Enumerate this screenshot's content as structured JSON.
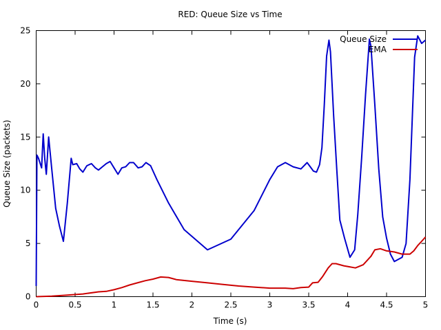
{
  "chart_data": {
    "type": "line",
    "title": "RED: Queue Size vs Time",
    "xlabel": "Time (s)",
    "ylabel": "Queue Size (packets)",
    "xlim": [
      0,
      5
    ],
    "ylim": [
      0,
      25
    ],
    "xticks": [
      0,
      0.5,
      1,
      1.5,
      2,
      2.5,
      3,
      3.5,
      4,
      4.5,
      5
    ],
    "xtick_labels": [
      "0",
      "0.5",
      "1",
      "1.5",
      "2",
      "2.5",
      "3",
      "3.5",
      "4",
      "4.5",
      "5"
    ],
    "yticks": [
      0,
      5,
      10,
      15,
      20,
      25
    ],
    "ytick_labels": [
      "0",
      "5",
      "10",
      "15",
      "20",
      "25"
    ],
    "grid": false,
    "legend_position": "top-right",
    "series": [
      {
        "name": "Queue Size",
        "color": "#0000cc",
        "points": [
          [
            0,
            1
          ],
          [
            0.01,
            13.3
          ],
          [
            0.03,
            13
          ],
          [
            0.07,
            12.1
          ],
          [
            0.09,
            15.3
          ],
          [
            0.11,
            13
          ],
          [
            0.13,
            11.5
          ],
          [
            0.16,
            15
          ],
          [
            0.2,
            12
          ],
          [
            0.25,
            8.3
          ],
          [
            0.3,
            6.6
          ],
          [
            0.35,
            5.2
          ],
          [
            0.4,
            8.8
          ],
          [
            0.45,
            13
          ],
          [
            0.47,
            12.4
          ],
          [
            0.52,
            12.5
          ],
          [
            0.56,
            12
          ],
          [
            0.6,
            11.7
          ],
          [
            0.65,
            12.3
          ],
          [
            0.71,
            12.5
          ],
          [
            0.76,
            12.1
          ],
          [
            0.8,
            11.9
          ],
          [
            0.85,
            12.2
          ],
          [
            0.9,
            12.5
          ],
          [
            0.95,
            12.7
          ],
          [
            1.0,
            12.1
          ],
          [
            1.05,
            11.5
          ],
          [
            1.1,
            12.1
          ],
          [
            1.15,
            12.2
          ],
          [
            1.2,
            12.6
          ],
          [
            1.25,
            12.6
          ],
          [
            1.31,
            12.1
          ],
          [
            1.36,
            12.2
          ],
          [
            1.41,
            12.6
          ],
          [
            1.47,
            12.3
          ],
          [
            1.55,
            11
          ],
          [
            1.7,
            8.8
          ],
          [
            1.9,
            6.3
          ],
          [
            2.2,
            4.4
          ],
          [
            2.5,
            5.4
          ],
          [
            2.8,
            8.1
          ],
          [
            3.0,
            11
          ],
          [
            3.1,
            12.2
          ],
          [
            3.2,
            12.6
          ],
          [
            3.3,
            12.2
          ],
          [
            3.4,
            12
          ],
          [
            3.48,
            12.6
          ],
          [
            3.52,
            12.2
          ],
          [
            3.56,
            11.8
          ],
          [
            3.6,
            11.7
          ],
          [
            3.64,
            12.4
          ],
          [
            3.67,
            14
          ],
          [
            3.7,
            18
          ],
          [
            3.73,
            22.6
          ],
          [
            3.76,
            24.1
          ],
          [
            3.78,
            23
          ],
          [
            3.82,
            17
          ],
          [
            3.86,
            12
          ],
          [
            3.9,
            7.2
          ],
          [
            3.96,
            5.5
          ],
          [
            4.03,
            3.7
          ],
          [
            4.09,
            4.4
          ],
          [
            4.13,
            7.7
          ],
          [
            4.18,
            13
          ],
          [
            4.23,
            19
          ],
          [
            4.28,
            24.2
          ],
          [
            4.3,
            23.5
          ],
          [
            4.35,
            18
          ],
          [
            4.4,
            12
          ],
          [
            4.45,
            7.5
          ],
          [
            4.5,
            5.5
          ],
          [
            4.55,
            4
          ],
          [
            4.6,
            3.3
          ],
          [
            4.7,
            3.7
          ],
          [
            4.75,
            5
          ],
          [
            4.8,
            11
          ],
          [
            4.86,
            22.5
          ],
          [
            4.9,
            24.5
          ],
          [
            4.95,
            23.8
          ],
          [
            5.0,
            24.1
          ]
        ]
      },
      {
        "name": "EMA",
        "color": "#cc0000",
        "points": [
          [
            0,
            0
          ],
          [
            0.2,
            0.05
          ],
          [
            0.4,
            0.15
          ],
          [
            0.6,
            0.25
          ],
          [
            0.8,
            0.45
          ],
          [
            0.9,
            0.5
          ],
          [
            1.0,
            0.65
          ],
          [
            1.1,
            0.85
          ],
          [
            1.2,
            1.1
          ],
          [
            1.3,
            1.3
          ],
          [
            1.4,
            1.5
          ],
          [
            1.5,
            1.65
          ],
          [
            1.6,
            1.85
          ],
          [
            1.7,
            1.8
          ],
          [
            1.8,
            1.6
          ],
          [
            2.0,
            1.45
          ],
          [
            2.2,
            1.3
          ],
          [
            2.4,
            1.15
          ],
          [
            2.6,
            1
          ],
          [
            2.8,
            0.9
          ],
          [
            3.0,
            0.8
          ],
          [
            3.2,
            0.8
          ],
          [
            3.3,
            0.75
          ],
          [
            3.4,
            0.85
          ],
          [
            3.5,
            0.9
          ],
          [
            3.55,
            1.3
          ],
          [
            3.62,
            1.35
          ],
          [
            3.68,
            1.9
          ],
          [
            3.75,
            2.7
          ],
          [
            3.8,
            3.1
          ],
          [
            3.85,
            3.1
          ],
          [
            3.95,
            2.9
          ],
          [
            4.1,
            2.7
          ],
          [
            4.2,
            3
          ],
          [
            4.3,
            3.8
          ],
          [
            4.35,
            4.4
          ],
          [
            4.42,
            4.5
          ],
          [
            4.5,
            4.3
          ],
          [
            4.6,
            4.2
          ],
          [
            4.7,
            4
          ],
          [
            4.8,
            4
          ],
          [
            4.85,
            4.3
          ],
          [
            4.9,
            4.8
          ],
          [
            4.95,
            5.2
          ],
          [
            5.0,
            5.6
          ]
        ]
      }
    ]
  }
}
